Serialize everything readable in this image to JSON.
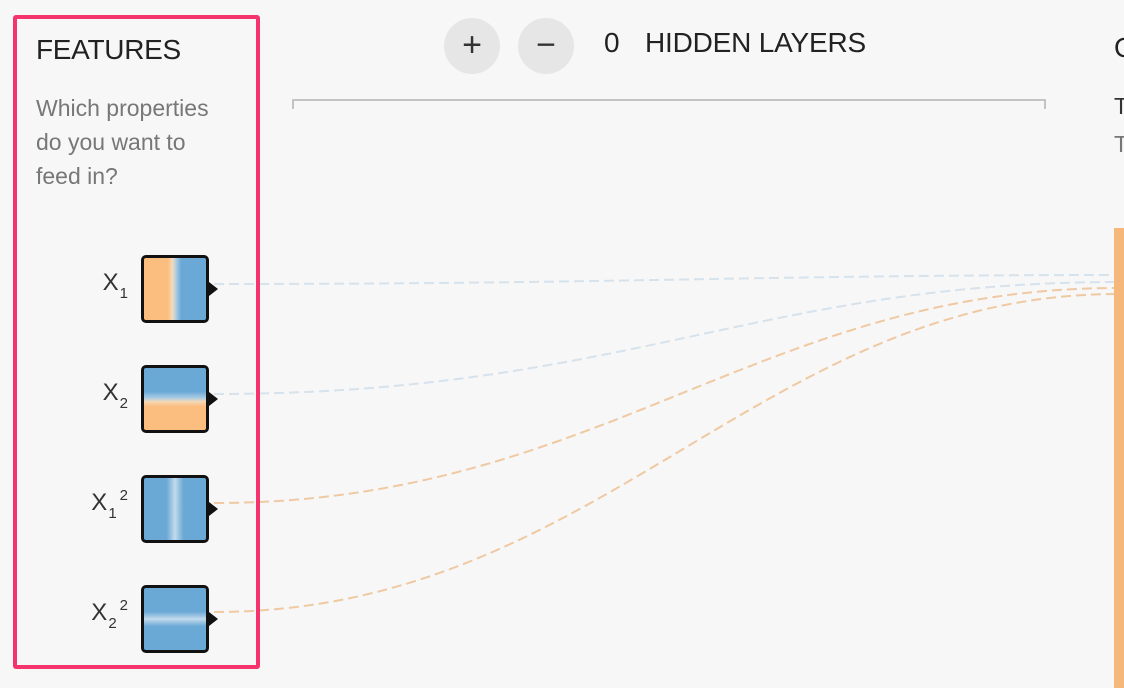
{
  "features": {
    "title": "FEATURES",
    "description": "Which properties do you want to feed in?",
    "items": [
      {
        "base": "X",
        "sub": "1",
        "sup": ""
      },
      {
        "base": "X",
        "sub": "2",
        "sup": ""
      },
      {
        "base": "X",
        "sub": "1",
        "sup": "2"
      },
      {
        "base": "X",
        "sub": "2",
        "sup": "2"
      }
    ]
  },
  "hidden_layers": {
    "add_symbol": "+",
    "remove_symbol": "−",
    "count": "0",
    "label": "HIDDEN LAYERS"
  },
  "output": {
    "title": "O",
    "line1": "T",
    "line2": "T"
  },
  "colors": {
    "highlight_border": "#f5336c",
    "positive": "#6aa8d6",
    "negative": "#fbbe7f",
    "link_blue": "#d6e2ec",
    "link_orange": "#efc9a2"
  }
}
